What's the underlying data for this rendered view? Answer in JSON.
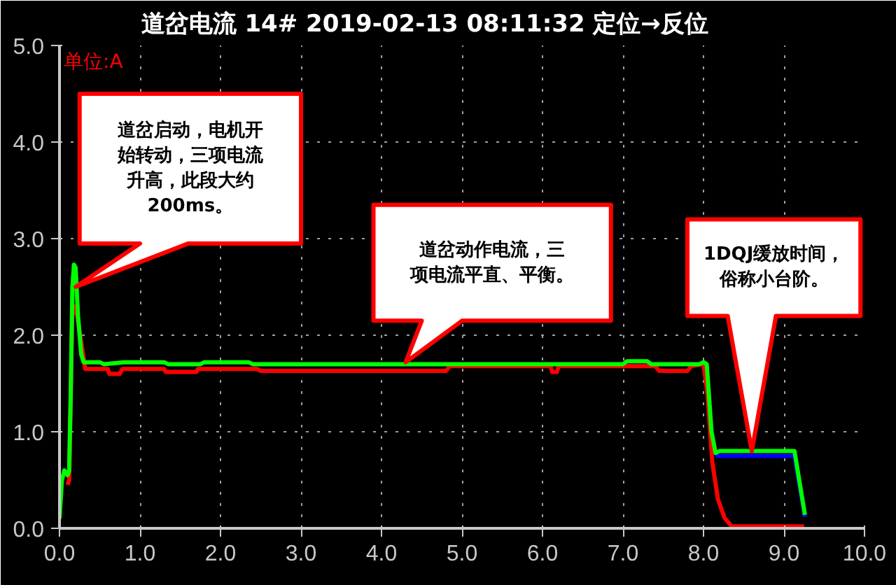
{
  "chart_data": {
    "type": "line",
    "title": "道岔电流        14#  2019-02-13 08:11:32  定位→反位",
    "ylabel": "单位:A",
    "xlim": [
      0,
      10
    ],
    "ylim": [
      0,
      5
    ],
    "xticks": [
      {
        "value": 0,
        "label": "0.0"
      },
      {
        "value": 1,
        "label": "1.0"
      },
      {
        "value": 2,
        "label": "2.0"
      },
      {
        "value": 3,
        "label": "3.0"
      },
      {
        "value": 4,
        "label": "4.0"
      },
      {
        "value": 5,
        "label": "5.0"
      },
      {
        "value": 6,
        "label": "6.0"
      },
      {
        "value": 7,
        "label": "7.0"
      },
      {
        "value": 8,
        "label": "8.0"
      },
      {
        "value": 9,
        "label": "9.0"
      },
      {
        "value": 10,
        "label": "10.0"
      }
    ],
    "yticks": [
      {
        "value": 0,
        "label": "0.0"
      },
      {
        "value": 1,
        "label": "1.0"
      },
      {
        "value": 2,
        "label": "2.0"
      },
      {
        "value": 3,
        "label": "3.0"
      },
      {
        "value": 4,
        "label": "4.0"
      },
      {
        "value": 5,
        "label": "5.0"
      }
    ],
    "grid": true,
    "line_style": "solid",
    "series": [
      {
        "color": "#ff0000",
        "x": [
          0.1,
          0.12,
          0.16,
          0.18,
          0.22,
          0.32,
          0.6,
          0.62,
          0.75,
          0.78,
          1.3,
          1.32,
          1.7,
          1.72,
          2.45,
          2.5,
          4.8,
          4.85,
          6.1,
          6.12,
          6.18,
          6.2,
          7.4,
          7.45,
          7.8,
          7.85,
          8.0,
          8.05,
          8.11,
          8.18,
          8.26,
          8.35,
          9.25
        ],
        "values": [
          0.45,
          0.5,
          2.3,
          2.3,
          2.2,
          1.65,
          1.65,
          1.6,
          1.6,
          1.65,
          1.65,
          1.62,
          1.62,
          1.65,
          1.65,
          1.63,
          1.63,
          1.68,
          1.68,
          1.62,
          1.62,
          1.68,
          1.68,
          1.63,
          1.63,
          1.68,
          1.7,
          1.4,
          0.68,
          0.3,
          0.11,
          0.02,
          0.02
        ]
      },
      {
        "color": "#0000ff",
        "x": [
          8.15,
          8.2,
          9.13,
          9.26
        ],
        "values": [
          0.75,
          0.75,
          0.75,
          0.12
        ]
      },
      {
        "color": "#00ff00",
        "x": [
          0,
          0.03,
          0.06,
          0.1,
          0.12,
          0.14,
          0.16,
          0.18,
          0.2,
          0.23,
          0.27,
          0.3,
          0.5,
          0.55,
          0.8,
          1.3,
          1.35,
          1.75,
          1.8,
          2.35,
          2.4,
          7.0,
          7.05,
          7.3,
          7.35,
          7.95,
          8.0,
          8.04,
          8.1,
          8.15,
          8.2,
          9.13,
          9.26
        ],
        "values": [
          0.1,
          0.5,
          0.6,
          0.55,
          0.6,
          1.4,
          2.5,
          2.73,
          2.7,
          2.2,
          1.8,
          1.72,
          1.72,
          1.7,
          1.72,
          1.72,
          1.7,
          1.7,
          1.72,
          1.72,
          1.7,
          1.7,
          1.73,
          1.73,
          1.7,
          1.7,
          1.72,
          1.7,
          1.0,
          0.78,
          0.8,
          0.8,
          0.14
        ]
      }
    ],
    "annotations": [
      "道岔启动，电机开始转动，三项电流升高，此段大约200ms。",
      "道岔动作电流，三项电流平直、平衡。",
      "1DQJ缓放时间，俗称小台阶。"
    ]
  }
}
